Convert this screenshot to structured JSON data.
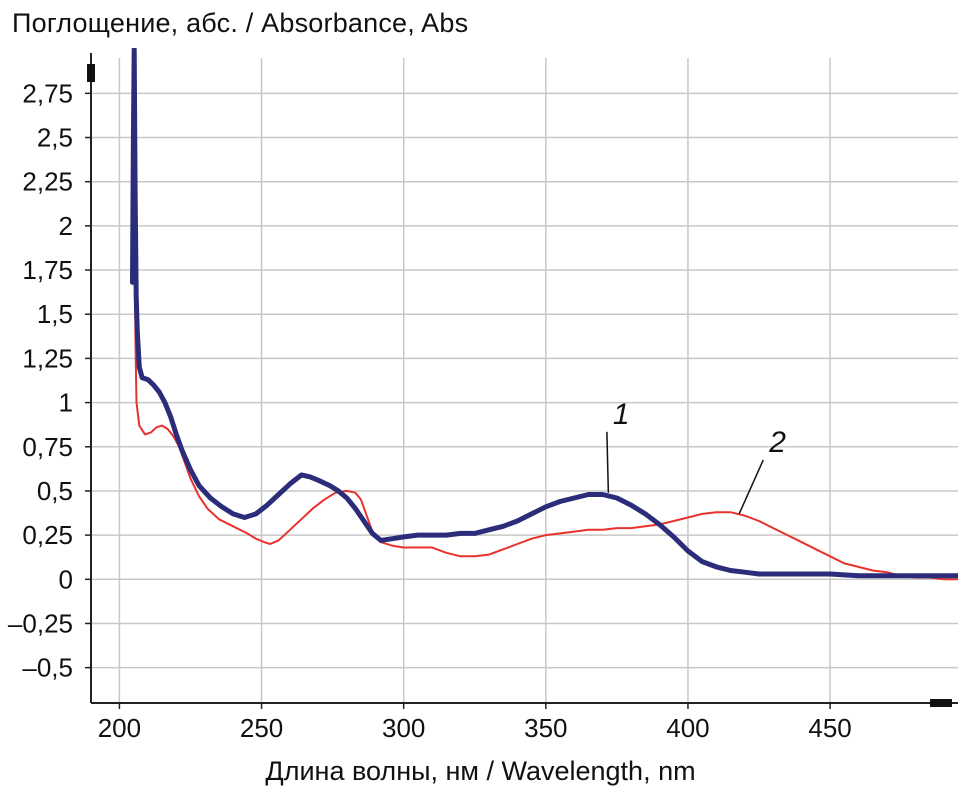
{
  "chart_data": {
    "type": "line",
    "ylabel": "Поглощение, абс. / Absorbance, Abs",
    "xlabel": "Длина волны, нм / Wavelength, nm",
    "xlim": [
      190,
      495
    ],
    "ylim": [
      -0.7,
      2.95
    ],
    "x_ticks": [
      200,
      250,
      300,
      350,
      400,
      450
    ],
    "x_tick_labels": [
      "200",
      "250",
      "300",
      "350",
      "400",
      "450"
    ],
    "y_ticks": [
      2.75,
      2.5,
      2.25,
      2,
      1.75,
      1.5,
      1.25,
      1,
      0.75,
      0.5,
      0.25,
      0,
      -0.25,
      -0.5
    ],
    "y_tick_labels": [
      "2,75",
      "2,5",
      "2,25",
      "2",
      "1,75",
      "1,5",
      "1,25",
      "1",
      "0,75",
      "0,5",
      "0,25",
      "0",
      "–0,25",
      "–0,5"
    ],
    "grid": true,
    "series": [
      {
        "name": "1",
        "color": "#2b2d7a",
        "points": [
          [
            204.6,
            1.68
          ],
          [
            204.9,
            2.5
          ],
          [
            205.2,
            3.0
          ],
          [
            205.5,
            2.2
          ],
          [
            205.9,
            1.6
          ],
          [
            206.3,
            1.4
          ],
          [
            207,
            1.2
          ],
          [
            208,
            1.14
          ],
          [
            210,
            1.13
          ],
          [
            212,
            1.1
          ],
          [
            214,
            1.06
          ],
          [
            216,
            1.0
          ],
          [
            218,
            0.92
          ],
          [
            220,
            0.82
          ],
          [
            222,
            0.73
          ],
          [
            225,
            0.62
          ],
          [
            228,
            0.53
          ],
          [
            232,
            0.46
          ],
          [
            236,
            0.41
          ],
          [
            240,
            0.37
          ],
          [
            244,
            0.35
          ],
          [
            248,
            0.37
          ],
          [
            252,
            0.42
          ],
          [
            256,
            0.48
          ],
          [
            260,
            0.54
          ],
          [
            264,
            0.59
          ],
          [
            267,
            0.58
          ],
          [
            270,
            0.56
          ],
          [
            274,
            0.53
          ],
          [
            277,
            0.5
          ],
          [
            280,
            0.46
          ],
          [
            283,
            0.4
          ],
          [
            286,
            0.33
          ],
          [
            289,
            0.26
          ],
          [
            292,
            0.22
          ],
          [
            296,
            0.23
          ],
          [
            300,
            0.24
          ],
          [
            305,
            0.25
          ],
          [
            310,
            0.25
          ],
          [
            315,
            0.25
          ],
          [
            320,
            0.26
          ],
          [
            325,
            0.26
          ],
          [
            330,
            0.28
          ],
          [
            335,
            0.3
          ],
          [
            340,
            0.33
          ],
          [
            345,
            0.37
          ],
          [
            350,
            0.41
          ],
          [
            355,
            0.44
          ],
          [
            360,
            0.46
          ],
          [
            365,
            0.48
          ],
          [
            370,
            0.48
          ],
          [
            375,
            0.46
          ],
          [
            380,
            0.42
          ],
          [
            385,
            0.37
          ],
          [
            390,
            0.31
          ],
          [
            395,
            0.24
          ],
          [
            400,
            0.16
          ],
          [
            405,
            0.1
          ],
          [
            410,
            0.07
          ],
          [
            415,
            0.05
          ],
          [
            420,
            0.04
          ],
          [
            425,
            0.03
          ],
          [
            430,
            0.03
          ],
          [
            440,
            0.03
          ],
          [
            450,
            0.03
          ],
          [
            460,
            0.02
          ],
          [
            470,
            0.02
          ],
          [
            480,
            0.02
          ],
          [
            490,
            0.02
          ],
          [
            495,
            0.02
          ]
        ]
      },
      {
        "name": "2",
        "color": "#e8322e",
        "points": [
          [
            204.8,
            2.9
          ],
          [
            205.1,
            2.3
          ],
          [
            205.4,
            1.7
          ],
          [
            205.7,
            1.3
          ],
          [
            206,
            1.0
          ],
          [
            207,
            0.87
          ],
          [
            209,
            0.82
          ],
          [
            211,
            0.83
          ],
          [
            213,
            0.86
          ],
          [
            215,
            0.87
          ],
          [
            217,
            0.85
          ],
          [
            219,
            0.81
          ],
          [
            221,
            0.75
          ],
          [
            223,
            0.66
          ],
          [
            225,
            0.57
          ],
          [
            228,
            0.47
          ],
          [
            231,
            0.4
          ],
          [
            235,
            0.34
          ],
          [
            240,
            0.3
          ],
          [
            245,
            0.26
          ],
          [
            248,
            0.23
          ],
          [
            251,
            0.21
          ],
          [
            253,
            0.2
          ],
          [
            256,
            0.22
          ],
          [
            260,
            0.28
          ],
          [
            264,
            0.34
          ],
          [
            268,
            0.4
          ],
          [
            272,
            0.45
          ],
          [
            276,
            0.49
          ],
          [
            280,
            0.5
          ],
          [
            283,
            0.49
          ],
          [
            285,
            0.45
          ],
          [
            287,
            0.36
          ],
          [
            289,
            0.27
          ],
          [
            292,
            0.21
          ],
          [
            296,
            0.19
          ],
          [
            300,
            0.18
          ],
          [
            305,
            0.18
          ],
          [
            310,
            0.18
          ],
          [
            315,
            0.15
          ],
          [
            320,
            0.13
          ],
          [
            325,
            0.13
          ],
          [
            330,
            0.14
          ],
          [
            335,
            0.17
          ],
          [
            340,
            0.2
          ],
          [
            345,
            0.23
          ],
          [
            350,
            0.25
          ],
          [
            355,
            0.26
          ],
          [
            360,
            0.27
          ],
          [
            365,
            0.28
          ],
          [
            370,
            0.28
          ],
          [
            375,
            0.29
          ],
          [
            380,
            0.29
          ],
          [
            385,
            0.3
          ],
          [
            390,
            0.31
          ],
          [
            395,
            0.33
          ],
          [
            400,
            0.35
          ],
          [
            405,
            0.37
          ],
          [
            410,
            0.38
          ],
          [
            415,
            0.38
          ],
          [
            420,
            0.36
          ],
          [
            425,
            0.33
          ],
          [
            430,
            0.29
          ],
          [
            435,
            0.25
          ],
          [
            440,
            0.21
          ],
          [
            445,
            0.17
          ],
          [
            450,
            0.13
          ],
          [
            455,
            0.09
          ],
          [
            460,
            0.07
          ],
          [
            465,
            0.05
          ],
          [
            470,
            0.04
          ],
          [
            475,
            0.02
          ],
          [
            480,
            0.01
          ],
          [
            485,
            0.01
          ],
          [
            490,
            0.0
          ],
          [
            495,
            0.0
          ]
        ]
      }
    ],
    "annotations": [
      {
        "text": "1",
        "label_x": 375,
        "label_y": 0.88,
        "target": [
          372,
          0.49
        ]
      },
      {
        "text": "2",
        "label_x": 430,
        "label_y": 0.72,
        "target": [
          418,
          0.37
        ]
      }
    ]
  }
}
